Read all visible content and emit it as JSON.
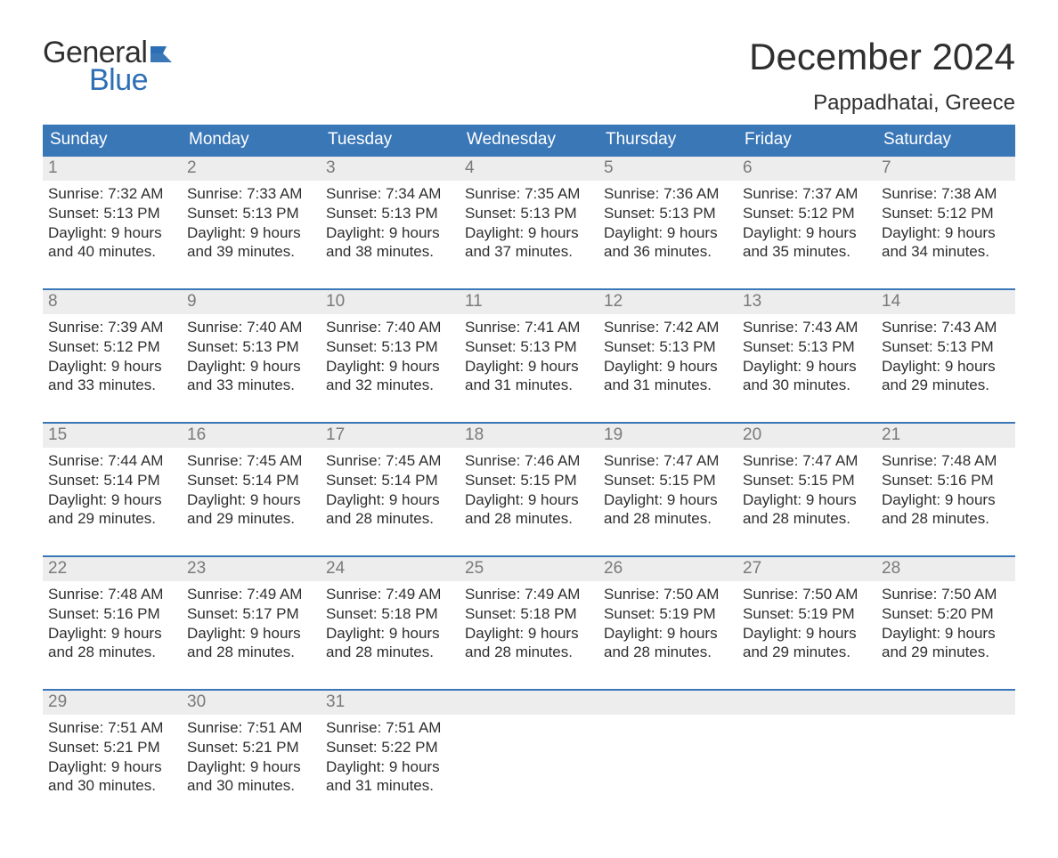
{
  "logo": {
    "word1": "General",
    "word2": "Blue",
    "text_color": "#2f2f2f",
    "accent_color": "#2d6fb5"
  },
  "title": "December 2024",
  "location": "Pappadhatai, Greece",
  "colors": {
    "header_bg": "#3a77b7",
    "header_text": "#ffffff",
    "daynum_bg": "#ededed",
    "daynum_text": "#7a7a7a",
    "body_text": "#2f2f2f",
    "week_border": "#3a77b7",
    "page_bg": "#ffffff"
  },
  "day_headers": [
    "Sunday",
    "Monday",
    "Tuesday",
    "Wednesday",
    "Thursday",
    "Friday",
    "Saturday"
  ],
  "sunrise_label": "Sunrise:",
  "sunset_label": "Sunset:",
  "daylight_label": "Daylight:",
  "weeks": [
    [
      {
        "day": "1",
        "sunrise": "7:32 AM",
        "sunset": "5:13 PM",
        "daylight_l1": "9 hours",
        "daylight_l2": "and 40 minutes."
      },
      {
        "day": "2",
        "sunrise": "7:33 AM",
        "sunset": "5:13 PM",
        "daylight_l1": "9 hours",
        "daylight_l2": "and 39 minutes."
      },
      {
        "day": "3",
        "sunrise": "7:34 AM",
        "sunset": "5:13 PM",
        "daylight_l1": "9 hours",
        "daylight_l2": "and 38 minutes."
      },
      {
        "day": "4",
        "sunrise": "7:35 AM",
        "sunset": "5:13 PM",
        "daylight_l1": "9 hours",
        "daylight_l2": "and 37 minutes."
      },
      {
        "day": "5",
        "sunrise": "7:36 AM",
        "sunset": "5:13 PM",
        "daylight_l1": "9 hours",
        "daylight_l2": "and 36 minutes."
      },
      {
        "day": "6",
        "sunrise": "7:37 AM",
        "sunset": "5:12 PM",
        "daylight_l1": "9 hours",
        "daylight_l2": "and 35 minutes."
      },
      {
        "day": "7",
        "sunrise": "7:38 AM",
        "sunset": "5:12 PM",
        "daylight_l1": "9 hours",
        "daylight_l2": "and 34 minutes."
      }
    ],
    [
      {
        "day": "8",
        "sunrise": "7:39 AM",
        "sunset": "5:12 PM",
        "daylight_l1": "9 hours",
        "daylight_l2": "and 33 minutes."
      },
      {
        "day": "9",
        "sunrise": "7:40 AM",
        "sunset": "5:13 PM",
        "daylight_l1": "9 hours",
        "daylight_l2": "and 33 minutes."
      },
      {
        "day": "10",
        "sunrise": "7:40 AM",
        "sunset": "5:13 PM",
        "daylight_l1": "9 hours",
        "daylight_l2": "and 32 minutes."
      },
      {
        "day": "11",
        "sunrise": "7:41 AM",
        "sunset": "5:13 PM",
        "daylight_l1": "9 hours",
        "daylight_l2": "and 31 minutes."
      },
      {
        "day": "12",
        "sunrise": "7:42 AM",
        "sunset": "5:13 PM",
        "daylight_l1": "9 hours",
        "daylight_l2": "and 31 minutes."
      },
      {
        "day": "13",
        "sunrise": "7:43 AM",
        "sunset": "5:13 PM",
        "daylight_l1": "9 hours",
        "daylight_l2": "and 30 minutes."
      },
      {
        "day": "14",
        "sunrise": "7:43 AM",
        "sunset": "5:13 PM",
        "daylight_l1": "9 hours",
        "daylight_l2": "and 29 minutes."
      }
    ],
    [
      {
        "day": "15",
        "sunrise": "7:44 AM",
        "sunset": "5:14 PM",
        "daylight_l1": "9 hours",
        "daylight_l2": "and 29 minutes."
      },
      {
        "day": "16",
        "sunrise": "7:45 AM",
        "sunset": "5:14 PM",
        "daylight_l1": "9 hours",
        "daylight_l2": "and 29 minutes."
      },
      {
        "day": "17",
        "sunrise": "7:45 AM",
        "sunset": "5:14 PM",
        "daylight_l1": "9 hours",
        "daylight_l2": "and 28 minutes."
      },
      {
        "day": "18",
        "sunrise": "7:46 AM",
        "sunset": "5:15 PM",
        "daylight_l1": "9 hours",
        "daylight_l2": "and 28 minutes."
      },
      {
        "day": "19",
        "sunrise": "7:47 AM",
        "sunset": "5:15 PM",
        "daylight_l1": "9 hours",
        "daylight_l2": "and 28 minutes."
      },
      {
        "day": "20",
        "sunrise": "7:47 AM",
        "sunset": "5:15 PM",
        "daylight_l1": "9 hours",
        "daylight_l2": "and 28 minutes."
      },
      {
        "day": "21",
        "sunrise": "7:48 AM",
        "sunset": "5:16 PM",
        "daylight_l1": "9 hours",
        "daylight_l2": "and 28 minutes."
      }
    ],
    [
      {
        "day": "22",
        "sunrise": "7:48 AM",
        "sunset": "5:16 PM",
        "daylight_l1": "9 hours",
        "daylight_l2": "and 28 minutes."
      },
      {
        "day": "23",
        "sunrise": "7:49 AM",
        "sunset": "5:17 PM",
        "daylight_l1": "9 hours",
        "daylight_l2": "and 28 minutes."
      },
      {
        "day": "24",
        "sunrise": "7:49 AM",
        "sunset": "5:18 PM",
        "daylight_l1": "9 hours",
        "daylight_l2": "and 28 minutes."
      },
      {
        "day": "25",
        "sunrise": "7:49 AM",
        "sunset": "5:18 PM",
        "daylight_l1": "9 hours",
        "daylight_l2": "and 28 minutes."
      },
      {
        "day": "26",
        "sunrise": "7:50 AM",
        "sunset": "5:19 PM",
        "daylight_l1": "9 hours",
        "daylight_l2": "and 28 minutes."
      },
      {
        "day": "27",
        "sunrise": "7:50 AM",
        "sunset": "5:19 PM",
        "daylight_l1": "9 hours",
        "daylight_l2": "and 29 minutes."
      },
      {
        "day": "28",
        "sunrise": "7:50 AM",
        "sunset": "5:20 PM",
        "daylight_l1": "9 hours",
        "daylight_l2": "and 29 minutes."
      }
    ],
    [
      {
        "day": "29",
        "sunrise": "7:51 AM",
        "sunset": "5:21 PM",
        "daylight_l1": "9 hours",
        "daylight_l2": "and 30 minutes."
      },
      {
        "day": "30",
        "sunrise": "7:51 AM",
        "sunset": "5:21 PM",
        "daylight_l1": "9 hours",
        "daylight_l2": "and 30 minutes."
      },
      {
        "day": "31",
        "sunrise": "7:51 AM",
        "sunset": "5:22 PM",
        "daylight_l1": "9 hours",
        "daylight_l2": "and 31 minutes."
      },
      {
        "empty": true
      },
      {
        "empty": true
      },
      {
        "empty": true
      },
      {
        "empty": true
      }
    ]
  ]
}
